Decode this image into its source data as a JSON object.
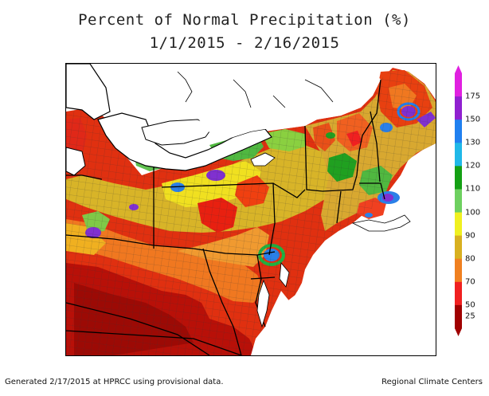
{
  "title": "Percent of Normal Precipitation (%)",
  "date_range": "1/1/2015 - 2/16/2015",
  "footer": {
    "generated": "Generated 2/17/2015 at HPRCC using provisional data.",
    "credit": "Regional Climate Centers"
  },
  "legend": {
    "bins": [
      {
        "label": "175",
        "color": "#e020e0"
      },
      {
        "label": "150",
        "color": "#9020d0"
      },
      {
        "label": "130",
        "color": "#2080f0"
      },
      {
        "label": "120",
        "color": "#20b8e8"
      },
      {
        "label": "110",
        "color": "#14a014"
      },
      {
        "label": "100",
        "color": "#6ed060"
      },
      {
        "label": "90",
        "color": "#f0f020"
      },
      {
        "label": "80",
        "color": "#d8b020"
      },
      {
        "label": "70",
        "color": "#f08020"
      },
      {
        "label": "50",
        "color": "#f02020"
      },
      {
        "label": "25",
        "color": "#a00000"
      }
    ]
  },
  "map": {
    "region": "Northeast United States",
    "water_color": "#ffffff",
    "state_line_color": "#000000",
    "county_line_color": "#555555"
  }
}
